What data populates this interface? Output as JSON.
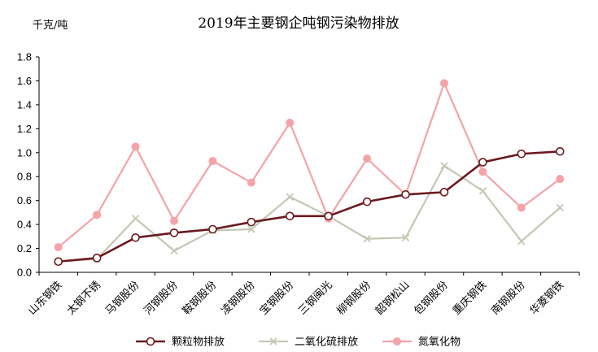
{
  "chart_data": {
    "type": "line",
    "title": "2019年主要钢企吨钢污染物排放",
    "ylabel": "千克/吨",
    "xlabel": "",
    "ylim": [
      0,
      1.8
    ],
    "yticks": [
      "0.0",
      "0.2",
      "0.4",
      "0.6",
      "0.8",
      "1.0",
      "1.2",
      "1.4",
      "1.6",
      "1.8"
    ],
    "grid": false,
    "legend_position": "bottom",
    "categories": [
      "山东钢铁",
      "太钢不锈",
      "马钢股份",
      "河钢股份",
      "鞍钢股份",
      "凌钢股份",
      "宝钢股份",
      "三钢闽光",
      "柳钢股份",
      "韶钢松山",
      "包钢股份",
      "重庆钢铁",
      "南钢股份",
      "华菱钢铁"
    ],
    "series": [
      {
        "name": "颗粒物排放",
        "color": "#6b1a1f",
        "marker": "hollow-circle",
        "values": [
          0.09,
          0.12,
          0.29,
          0.33,
          0.36,
          0.42,
          0.47,
          0.47,
          0.59,
          0.65,
          0.67,
          0.92,
          0.99,
          1.01
        ]
      },
      {
        "name": "二氧化硫排放",
        "color": "#c5c7b5",
        "marker": "x",
        "values": [
          0.09,
          0.11,
          0.45,
          0.18,
          0.35,
          0.36,
          0.63,
          0.47,
          0.28,
          0.29,
          0.89,
          0.68,
          0.26,
          0.54
        ]
      },
      {
        "name": "氮氧化物",
        "color": "#f4a3a8",
        "marker": "filled-circle",
        "values": [
          0.21,
          0.48,
          1.05,
          0.43,
          0.93,
          0.75,
          1.25,
          0.45,
          0.95,
          0.65,
          1.58,
          0.84,
          0.54,
          0.78
        ]
      }
    ]
  }
}
